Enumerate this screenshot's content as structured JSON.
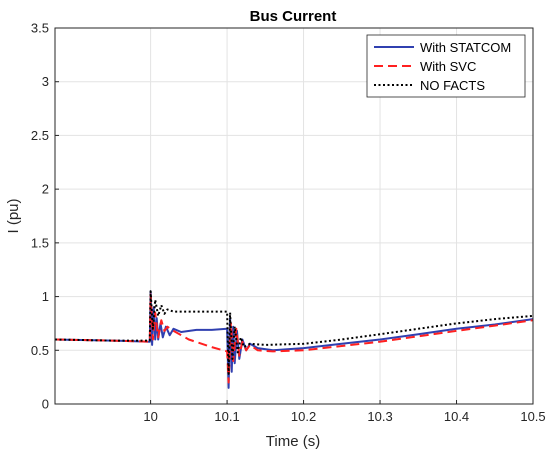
{
  "chart_data": {
    "type": "line",
    "title": "Bus Current",
    "xlabel": "Time (s)",
    "ylabel": "I (pu)",
    "xlim": [
      9.875,
      10.5
    ],
    "ylim": [
      0,
      3.5
    ],
    "grid": true,
    "legend_position": "top-right",
    "x_ticks": [
      10,
      10.1,
      10.2,
      10.3,
      10.4,
      10.5
    ],
    "x_tick_labels": [
      "10",
      "10.1",
      "10.2",
      "10.3",
      "10.4",
      "10.5"
    ],
    "y_ticks": [
      0,
      0.5,
      1,
      1.5,
      2,
      2.5,
      3,
      3.5
    ],
    "y_tick_labels": [
      "0",
      "0.5",
      "1",
      "1.5",
      "2",
      "2.5",
      "3",
      "3.5"
    ],
    "series": [
      {
        "name": "With STATCOM",
        "color": "#3040b0",
        "dash": "solid",
        "x": [
          9.875,
          9.95,
          9.999,
          10.0,
          10.002,
          10.004,
          10.006,
          10.008,
          10.01,
          10.013,
          10.016,
          10.02,
          10.025,
          10.03,
          10.04,
          10.06,
          10.08,
          10.1,
          10.102,
          10.104,
          10.106,
          10.108,
          10.11,
          10.113,
          10.116,
          10.12,
          10.125,
          10.13,
          10.14,
          10.16,
          10.2,
          10.25,
          10.3,
          10.35,
          10.4,
          10.45,
          10.5
        ],
        "y": [
          0.6,
          0.59,
          0.58,
          1.05,
          0.55,
          0.9,
          0.6,
          0.8,
          0.6,
          0.75,
          0.62,
          0.72,
          0.64,
          0.7,
          0.67,
          0.69,
          0.69,
          0.7,
          0.15,
          0.8,
          0.3,
          0.72,
          0.38,
          0.68,
          0.42,
          0.6,
          0.5,
          0.56,
          0.52,
          0.5,
          0.52,
          0.56,
          0.6,
          0.65,
          0.7,
          0.74,
          0.79
        ]
      },
      {
        "name": "With SVC",
        "color": "#ff2020",
        "dash": "dashed",
        "x": [
          9.875,
          9.95,
          9.999,
          10.0,
          10.003,
          10.006,
          10.01,
          10.014,
          10.018,
          10.022,
          10.03,
          10.05,
          10.08,
          10.1,
          10.102,
          10.105,
          10.108,
          10.112,
          10.116,
          10.12,
          10.125,
          10.13,
          10.14,
          10.16,
          10.2,
          10.25,
          10.3,
          10.35,
          10.4,
          10.45,
          10.5
        ],
        "y": [
          0.6,
          0.59,
          0.58,
          1.02,
          0.6,
          0.85,
          0.62,
          0.78,
          0.68,
          0.72,
          0.68,
          0.6,
          0.53,
          0.49,
          0.2,
          0.75,
          0.4,
          0.7,
          0.45,
          0.58,
          0.5,
          0.55,
          0.5,
          0.49,
          0.5,
          0.54,
          0.58,
          0.63,
          0.68,
          0.73,
          0.78
        ]
      },
      {
        "name": "NO FACTS",
        "color": "#000000",
        "dash": "dotted",
        "x": [
          9.875,
          9.95,
          9.999,
          10.0,
          10.003,
          10.006,
          10.01,
          10.014,
          10.018,
          10.022,
          10.03,
          10.06,
          10.099,
          10.1,
          10.102,
          10.104,
          10.107,
          10.11,
          10.114,
          10.118,
          10.122,
          10.13,
          10.15,
          10.2,
          10.25,
          10.3,
          10.35,
          10.4,
          10.45,
          10.5
        ],
        "y": [
          0.6,
          0.59,
          0.59,
          1.05,
          0.7,
          0.97,
          0.82,
          0.92,
          0.84,
          0.88,
          0.86,
          0.86,
          0.86,
          0.86,
          0.28,
          0.85,
          0.42,
          0.72,
          0.48,
          0.62,
          0.53,
          0.56,
          0.55,
          0.56,
          0.6,
          0.65,
          0.7,
          0.75,
          0.79,
          0.82
        ]
      }
    ]
  }
}
